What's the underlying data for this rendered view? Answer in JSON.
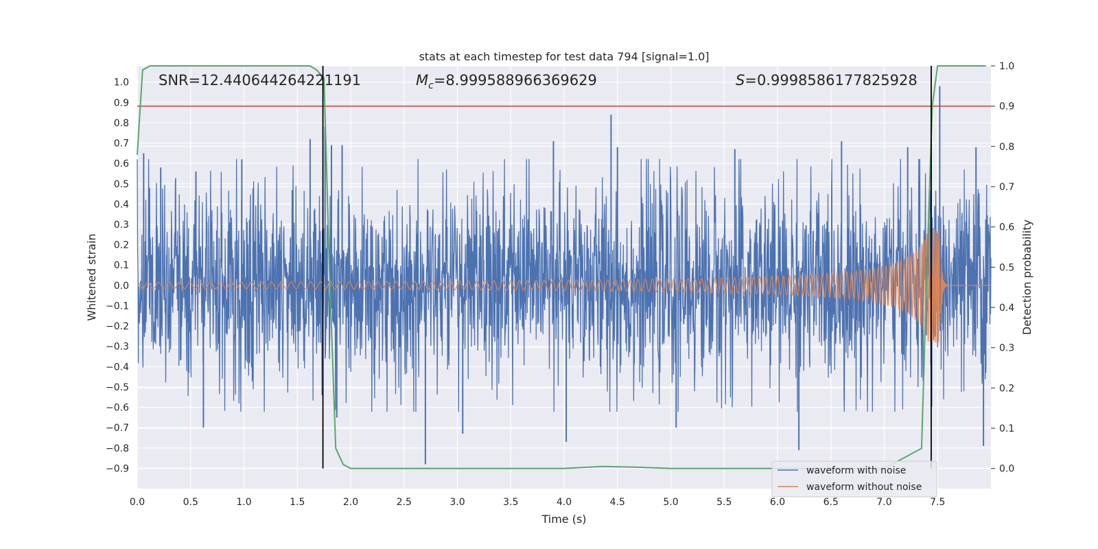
{
  "chart_data": {
    "type": "line",
    "title": "stats at each timestep for test data 794 [signal=1.0]",
    "xlabel": "Time (s)",
    "ylabel_left": "Whitened strain",
    "ylabel_right": "Detection probability",
    "xlim": [
      0.0,
      8.0
    ],
    "ylim_left": [
      -1.0,
      1.08
    ],
    "ylim_right": [
      -0.05,
      1.0
    ],
    "grid": true,
    "x_ticks": [
      "0.0",
      "0.5",
      "1.0",
      "1.5",
      "2.0",
      "2.5",
      "3.0",
      "3.5",
      "4.0",
      "4.5",
      "5.0",
      "5.5",
      "6.0",
      "6.5",
      "7.0",
      "7.5"
    ],
    "y_ticks_left": [
      "−0.9",
      "−0.8",
      "−0.7",
      "−0.6",
      "−0.5",
      "−0.4",
      "−0.3",
      "−0.2",
      "−0.1",
      "0.0",
      "0.1",
      "0.2",
      "0.3",
      "0.4",
      "0.5",
      "0.6",
      "0.7",
      "0.8",
      "0.9",
      "1.0"
    ],
    "y_ticks_right": [
      "0.0",
      "0.1",
      "0.2",
      "0.3",
      "0.4",
      "0.5",
      "0.6",
      "0.7",
      "0.8",
      "0.9",
      "1.0"
    ],
    "annotations": {
      "snr": "SNR=12.440644264221191",
      "mc_symbol": "M",
      "mc_sub": "c",
      "mc_value": "=8.999588966369629",
      "s_symbol": "S",
      "s_value": "=0.9998586177825928"
    },
    "legend": {
      "position": "lower-right",
      "entries": [
        "waveform with noise",
        "waveform without noise"
      ]
    },
    "series": [
      {
        "name": "waveform with noise",
        "axis": "left",
        "color": "#4c72b0",
        "kind": "noise",
        "typical_amplitude": 0.45,
        "spikes": [
          {
            "x": 0.06,
            "y": 0.65
          },
          {
            "x": 0.22,
            "y": 0.58
          },
          {
            "x": 0.55,
            "y": 0.56
          },
          {
            "x": 0.62,
            "y": -0.7
          },
          {
            "x": 0.98,
            "y": 0.62
          },
          {
            "x": 1.62,
            "y": 0.72
          },
          {
            "x": 1.76,
            "y": 0.78
          },
          {
            "x": 1.82,
            "y": 0.69
          },
          {
            "x": 1.87,
            "y": -0.65
          },
          {
            "x": 1.92,
            "y": 0.69
          },
          {
            "x": 2.7,
            "y": -0.88
          },
          {
            "x": 3.05,
            "y": -0.73
          },
          {
            "x": 3.9,
            "y": 0.71
          },
          {
            "x": 4.02,
            "y": -0.77
          },
          {
            "x": 4.44,
            "y": 0.84
          },
          {
            "x": 4.5,
            "y": 0.68
          },
          {
            "x": 5.05,
            "y": -0.7
          },
          {
            "x": 5.6,
            "y": 0.67
          },
          {
            "x": 6.2,
            "y": -0.81
          },
          {
            "x": 6.6,
            "y": 0.71
          },
          {
            "x": 7.22,
            "y": 0.68
          },
          {
            "x": 7.44,
            "y": 0.77
          },
          {
            "x": 7.52,
            "y": 0.98
          },
          {
            "x": 7.86,
            "y": 0.68
          },
          {
            "x": 7.93,
            "y": -0.79
          }
        ]
      },
      {
        "name": "waveform without noise",
        "axis": "left",
        "color": "#dd8452",
        "kind": "chirp",
        "merger_time": 7.53,
        "base_amplitude": 0.015,
        "peak_amplitude": 0.28,
        "start_frequency_hz": 10
      },
      {
        "axis": "right",
        "color": "#55a868",
        "kind": "probability",
        "x": [
          0.0,
          0.05,
          0.12,
          0.3,
          1.0,
          1.62,
          1.68,
          1.75,
          1.8,
          1.86,
          1.93,
          2.0,
          3.0,
          4.0,
          4.35,
          4.7,
          5.0,
          6.0,
          7.0,
          7.35,
          7.4,
          7.45,
          7.5,
          7.55,
          7.95
        ],
        "y": [
          0.78,
          0.99,
          1.0,
          1.0,
          1.0,
          1.0,
          0.99,
          0.97,
          0.5,
          0.05,
          0.01,
          0.0,
          0.0,
          0.0,
          0.005,
          0.003,
          0.0,
          0.0,
          0.0,
          0.05,
          0.5,
          0.9,
          1.0,
          1.0,
          1.0
        ]
      }
    ],
    "threshold": {
      "axis": "right",
      "y": 0.9,
      "color": "#c44e52"
    },
    "vertical_markers": [
      {
        "x": 1.74,
        "color": "#000000"
      },
      {
        "x": 7.44,
        "color": "#000000"
      }
    ],
    "colors": {
      "plot_background": "#eaeaf2",
      "grid": "#ffffff"
    }
  }
}
